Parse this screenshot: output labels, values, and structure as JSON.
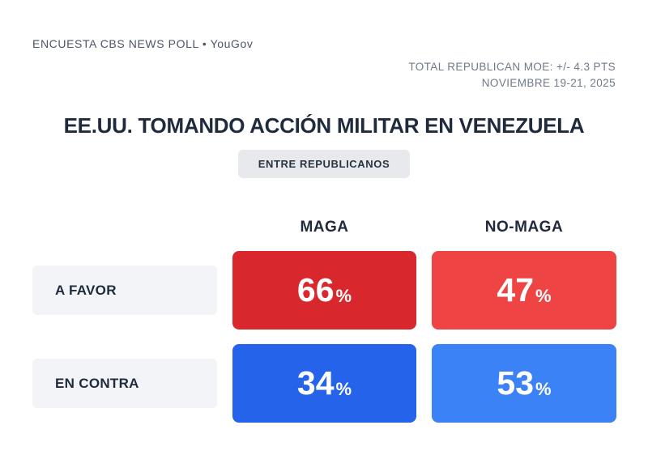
{
  "header": {
    "source": "ENCUESTA CBS NEWS POLL • YouGov",
    "moe": "TOTAL REPUBLICAN MOE: +/- 4.3 PTS",
    "date": "NOVIEMBRE 19-21, 2025"
  },
  "title": "EE.UU. TOMANDO ACCIÓN MILITAR EN VENEZUELA",
  "badge": "ENTRE REPUBLICANOS",
  "strings": {
    "percent": "%"
  },
  "chart_data": {
    "type": "table",
    "title": "EE.UU. TOMANDO ACCIÓN MILITAR EN VENEZUELA",
    "subtitle": "ENTRE REPUBLICANOS",
    "source": "ENCUESTA CBS NEWS POLL • YouGov",
    "moe_note": "TOTAL REPUBLICAN MOE: +/- 4.3 PTS",
    "date_note": "NOVIEMBRE 19-21, 2025",
    "units": "%",
    "columns": [
      "MAGA",
      "NO-MAGA"
    ],
    "rows": [
      {
        "label": "A FAVOR",
        "values": [
          66,
          47
        ]
      },
      {
        "label": "EN CONTRA",
        "values": [
          34,
          53
        ]
      }
    ]
  },
  "colors": {
    "favor_maga": "#d9282d",
    "favor_nomaga": "#ef4444",
    "contra_maga": "#2563eb",
    "contra_nomaga": "#3b82f6",
    "label_bg": "#f2f4f7",
    "badge_bg": "#e7e9ec",
    "cell_text": "#ffffff"
  }
}
